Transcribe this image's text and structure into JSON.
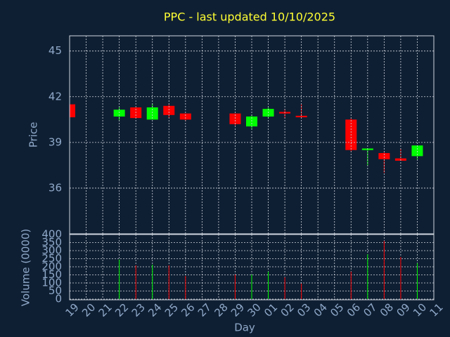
{
  "chart_data": {
    "type": "candlestick",
    "title": "PPC - last updated 10/10/2025",
    "x_label": "Day",
    "y_label": "Price",
    "y2_label": "Volume (0000)",
    "categories": [
      "19",
      "20",
      "21",
      "22",
      "23",
      "24",
      "25",
      "26",
      "27",
      "28",
      "29",
      "30",
      "01",
      "02",
      "03",
      "04",
      "05",
      "06",
      "07",
      "08",
      "09",
      "10",
      "11"
    ],
    "open": [
      41.5,
      null,
      null,
      40.7,
      41.3,
      40.5,
      41.4,
      40.9,
      null,
      null,
      40.9,
      40.05,
      40.7,
      41.0,
      40.75,
      null,
      null,
      40.5,
      38.5,
      38.3,
      37.95,
      38.1,
      null
    ],
    "high": [
      41.6,
      null,
      null,
      41.33,
      41.3,
      41.55,
      41.5,
      40.9,
      null,
      null,
      40.9,
      40.8,
      41.3,
      41.2,
      41.5,
      null,
      null,
      40.6,
      38.6,
      38.35,
      38.6,
      38.8,
      null
    ],
    "low": [
      40.6,
      null,
      null,
      40.45,
      40.6,
      40.5,
      40.6,
      40.4,
      null,
      null,
      40.1,
      39.9,
      40.6,
      40.6,
      40.6,
      null,
      null,
      38.4,
      37.5,
      37.0,
      37.8,
      37.9,
      null
    ],
    "close": [
      40.65,
      null,
      null,
      41.15,
      40.6,
      41.3,
      40.8,
      40.5,
      null,
      null,
      40.2,
      40.7,
      41.2,
      40.9,
      40.65,
      null,
      null,
      38.5,
      38.6,
      37.9,
      37.8,
      38.8,
      null
    ],
    "volume": [
      null,
      null,
      null,
      245,
      209,
      213,
      209,
      143,
      null,
      null,
      152,
      152,
      170,
      135,
      96,
      null,
      null,
      170,
      278,
      360,
      261,
      222,
      null
    ],
    "up_color": "#00ff00",
    "down_color": "#ff0000",
    "ylim": [
      33,
      46
    ],
    "yticks": [
      36,
      39,
      42,
      45
    ],
    "y2lim": [
      0,
      400
    ],
    "y2ticks": [
      0,
      50,
      100,
      150,
      200,
      250,
      300,
      350,
      400
    ],
    "grid": true
  }
}
